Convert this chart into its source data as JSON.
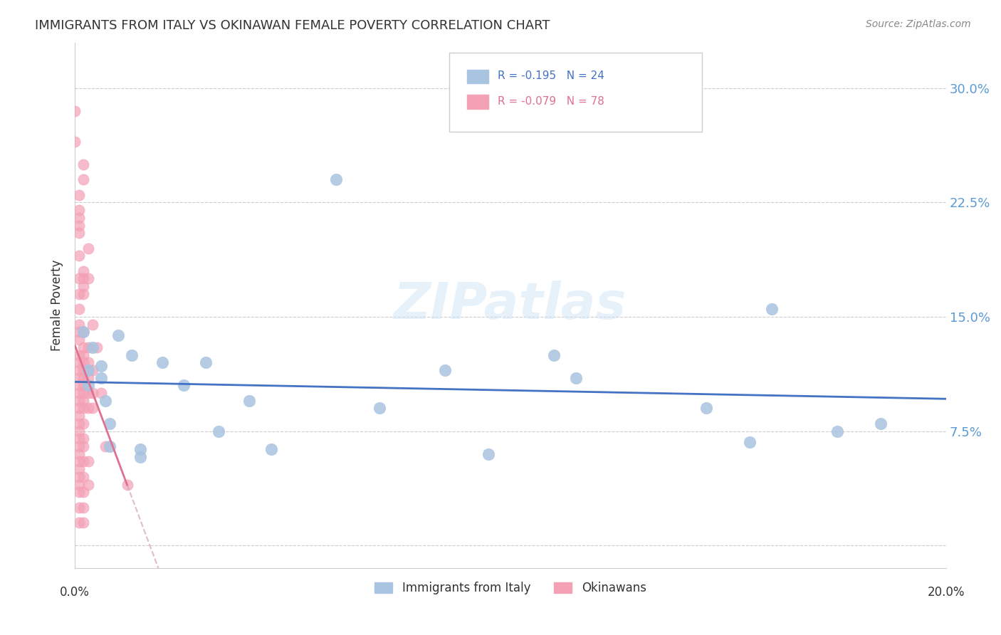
{
  "title": "IMMIGRANTS FROM ITALY VS OKINAWAN FEMALE POVERTY CORRELATION CHART",
  "source": "Source: ZipAtlas.com",
  "ylabel": "Female Poverty",
  "y_ticks": [
    0.0,
    0.075,
    0.15,
    0.225,
    0.3
  ],
  "y_tick_labels": [
    "",
    "7.5%",
    "15.0%",
    "22.5%",
    "30.0%"
  ],
  "x_min": 0.0,
  "x_max": 0.2,
  "y_min": -0.015,
  "y_max": 0.33,
  "italy_color": "#a8c4e0",
  "okinawa_color": "#f4a0b5",
  "italy_line_color": "#4472c4",
  "okinawa_line_color": "#e07090",
  "okinawa_dashed_color": "#d4a0b8",
  "italy_points": [
    [
      0.002,
      0.14
    ],
    [
      0.003,
      0.115
    ],
    [
      0.003,
      0.105
    ],
    [
      0.004,
      0.13
    ],
    [
      0.006,
      0.118
    ],
    [
      0.006,
      0.11
    ],
    [
      0.007,
      0.095
    ],
    [
      0.008,
      0.08
    ],
    [
      0.008,
      0.065
    ],
    [
      0.01,
      0.138
    ],
    [
      0.013,
      0.125
    ],
    [
      0.015,
      0.063
    ],
    [
      0.015,
      0.058
    ],
    [
      0.02,
      0.12
    ],
    [
      0.025,
      0.105
    ],
    [
      0.03,
      0.12
    ],
    [
      0.033,
      0.075
    ],
    [
      0.04,
      0.095
    ],
    [
      0.045,
      0.063
    ],
    [
      0.06,
      0.24
    ],
    [
      0.07,
      0.09
    ],
    [
      0.085,
      0.115
    ],
    [
      0.095,
      0.06
    ],
    [
      0.11,
      0.125
    ],
    [
      0.115,
      0.11
    ],
    [
      0.145,
      0.09
    ],
    [
      0.155,
      0.068
    ],
    [
      0.16,
      0.155
    ],
    [
      0.175,
      0.075
    ],
    [
      0.185,
      0.08
    ]
  ],
  "okinawa_points": [
    [
      0.0,
      0.285
    ],
    [
      0.0,
      0.265
    ],
    [
      0.001,
      0.23
    ],
    [
      0.001,
      0.22
    ],
    [
      0.001,
      0.215
    ],
    [
      0.001,
      0.21
    ],
    [
      0.001,
      0.205
    ],
    [
      0.001,
      0.19
    ],
    [
      0.001,
      0.175
    ],
    [
      0.001,
      0.165
    ],
    [
      0.001,
      0.155
    ],
    [
      0.001,
      0.145
    ],
    [
      0.001,
      0.14
    ],
    [
      0.001,
      0.135
    ],
    [
      0.001,
      0.125
    ],
    [
      0.001,
      0.12
    ],
    [
      0.001,
      0.115
    ],
    [
      0.001,
      0.11
    ],
    [
      0.001,
      0.105
    ],
    [
      0.001,
      0.1
    ],
    [
      0.001,
      0.095
    ],
    [
      0.001,
      0.09
    ],
    [
      0.001,
      0.085
    ],
    [
      0.001,
      0.08
    ],
    [
      0.001,
      0.075
    ],
    [
      0.001,
      0.07
    ],
    [
      0.001,
      0.065
    ],
    [
      0.001,
      0.06
    ],
    [
      0.001,
      0.055
    ],
    [
      0.001,
      0.05
    ],
    [
      0.001,
      0.045
    ],
    [
      0.001,
      0.04
    ],
    [
      0.001,
      0.035
    ],
    [
      0.001,
      0.025
    ],
    [
      0.001,
      0.015
    ],
    [
      0.002,
      0.25
    ],
    [
      0.002,
      0.24
    ],
    [
      0.002,
      0.18
    ],
    [
      0.002,
      0.175
    ],
    [
      0.002,
      0.17
    ],
    [
      0.002,
      0.165
    ],
    [
      0.002,
      0.14
    ],
    [
      0.002,
      0.13
    ],
    [
      0.002,
      0.125
    ],
    [
      0.002,
      0.12
    ],
    [
      0.002,
      0.115
    ],
    [
      0.002,
      0.11
    ],
    [
      0.002,
      0.105
    ],
    [
      0.002,
      0.1
    ],
    [
      0.002,
      0.095
    ],
    [
      0.002,
      0.09
    ],
    [
      0.002,
      0.08
    ],
    [
      0.002,
      0.07
    ],
    [
      0.002,
      0.065
    ],
    [
      0.002,
      0.055
    ],
    [
      0.002,
      0.045
    ],
    [
      0.002,
      0.035
    ],
    [
      0.002,
      0.025
    ],
    [
      0.002,
      0.015
    ],
    [
      0.003,
      0.195
    ],
    [
      0.003,
      0.175
    ],
    [
      0.003,
      0.13
    ],
    [
      0.003,
      0.12
    ],
    [
      0.003,
      0.11
    ],
    [
      0.003,
      0.1
    ],
    [
      0.003,
      0.09
    ],
    [
      0.003,
      0.055
    ],
    [
      0.003,
      0.04
    ],
    [
      0.004,
      0.145
    ],
    [
      0.004,
      0.115
    ],
    [
      0.004,
      0.1
    ],
    [
      0.004,
      0.09
    ],
    [
      0.005,
      0.13
    ],
    [
      0.006,
      0.1
    ],
    [
      0.007,
      0.065
    ],
    [
      0.012,
      0.04
    ]
  ]
}
